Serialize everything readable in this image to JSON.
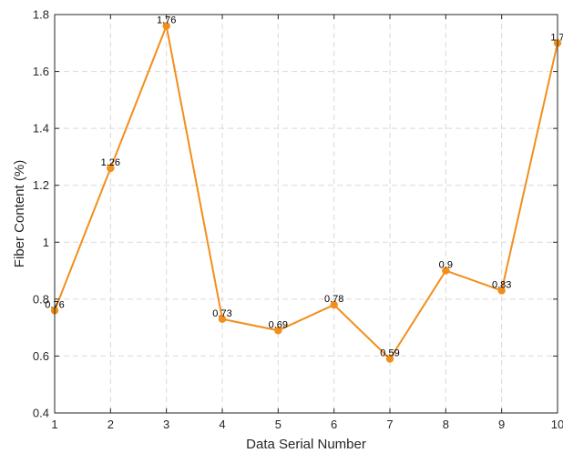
{
  "chart_data": {
    "type": "line",
    "title": "",
    "xlabel": "Data Serial Number",
    "ylabel": "Fiber Content (%)",
    "x": [
      1,
      2,
      3,
      4,
      5,
      6,
      7,
      8,
      9,
      10
    ],
    "xlim": [
      1,
      10
    ],
    "ylim": [
      0.4,
      1.8
    ],
    "xticks": [
      "1",
      "2",
      "3",
      "4",
      "5",
      "6",
      "7",
      "8",
      "9",
      "10"
    ],
    "yticks": [
      "0.4",
      "0.6",
      "0.8",
      "1",
      "1.2",
      "1.4",
      "1.6",
      "1.8"
    ],
    "grid": true,
    "series": [
      {
        "values": [
          0.76,
          1.26,
          1.76,
          0.73,
          0.69,
          0.78,
          0.59,
          0.9,
          0.83,
          1.7
        ],
        "labels": [
          "0.76",
          "1.26",
          "1.76",
          "0.73",
          "0.69",
          "0.78",
          "0.59",
          "0.9",
          "0.83",
          "1.7"
        ]
      }
    ],
    "colors": {
      "line": "#f28e1c",
      "marker": "#f28e1c",
      "axis": "#262626",
      "grid": "#d9d9d9"
    }
  }
}
